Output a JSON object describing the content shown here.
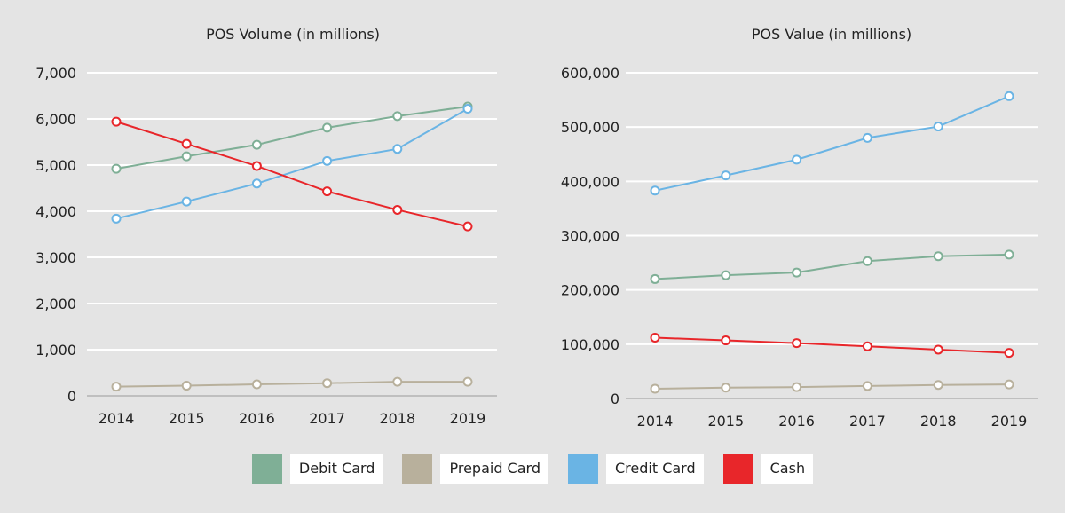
{
  "chart_data": [
    {
      "type": "line",
      "title": "POS Volume (in millions)",
      "xlabel": "",
      "ylabel": "",
      "categories": [
        "2014",
        "2015",
        "2016",
        "2017",
        "2018",
        "2019"
      ],
      "ylim": [
        0,
        7000
      ],
      "yticks": [
        0,
        1000,
        2000,
        3000,
        4000,
        5000,
        6000,
        7000
      ],
      "ytick_labels": [
        "0",
        "1,000",
        "2,000",
        "3,000",
        "4,000",
        "5,000",
        "6,000",
        "7,000"
      ],
      "grid": true,
      "series": [
        {
          "name": "Debit Card",
          "color": "#7faf96",
          "values": [
            4920,
            5190,
            5440,
            5810,
            6060,
            6270
          ]
        },
        {
          "name": "Prepaid Card",
          "color": "#b8b09c",
          "values": [
            200,
            220,
            250,
            275,
            305,
            305
          ]
        },
        {
          "name": "Credit Card",
          "color": "#6ab4e4",
          "values": [
            3840,
            4210,
            4600,
            5090,
            5350,
            6220
          ]
        },
        {
          "name": "Cash",
          "color": "#e8262a",
          "values": [
            5940,
            5460,
            4980,
            4430,
            4030,
            3670
          ]
        }
      ]
    },
    {
      "type": "line",
      "title": "POS Value (in millions)",
      "xlabel": "",
      "ylabel": "",
      "categories": [
        "2014",
        "2015",
        "2016",
        "2017",
        "2018",
        "2019"
      ],
      "ylim": [
        0,
        600000
      ],
      "yticks": [
        0,
        100000,
        200000,
        300000,
        400000,
        500000,
        600000
      ],
      "ytick_labels": [
        "0",
        "100,000",
        "200,000",
        "300,000",
        "400,000",
        "500,000",
        "600,000"
      ],
      "grid": true,
      "series": [
        {
          "name": "Debit Card",
          "color": "#7faf96",
          "values": [
            220000,
            227000,
            232000,
            253000,
            262000,
            265000
          ]
        },
        {
          "name": "Prepaid Card",
          "color": "#b8b09c",
          "values": [
            18000,
            20000,
            21000,
            23000,
            25000,
            26000
          ]
        },
        {
          "name": "Credit Card",
          "color": "#6ab4e4",
          "values": [
            383000,
            411000,
            440000,
            480000,
            501000,
            557000
          ]
        },
        {
          "name": "Cash",
          "color": "#e8262a",
          "values": [
            112000,
            107000,
            102000,
            96000,
            90000,
            84000
          ]
        }
      ]
    }
  ],
  "legend": {
    "placement": "bottom-center",
    "items": [
      {
        "label": "Debit Card",
        "color": "#7faf96"
      },
      {
        "label": "Prepaid Card",
        "color": "#b8b09c"
      },
      {
        "label": "Credit Card",
        "color": "#6ab4e4"
      },
      {
        "label": "Cash",
        "color": "#e8262a"
      }
    ]
  }
}
